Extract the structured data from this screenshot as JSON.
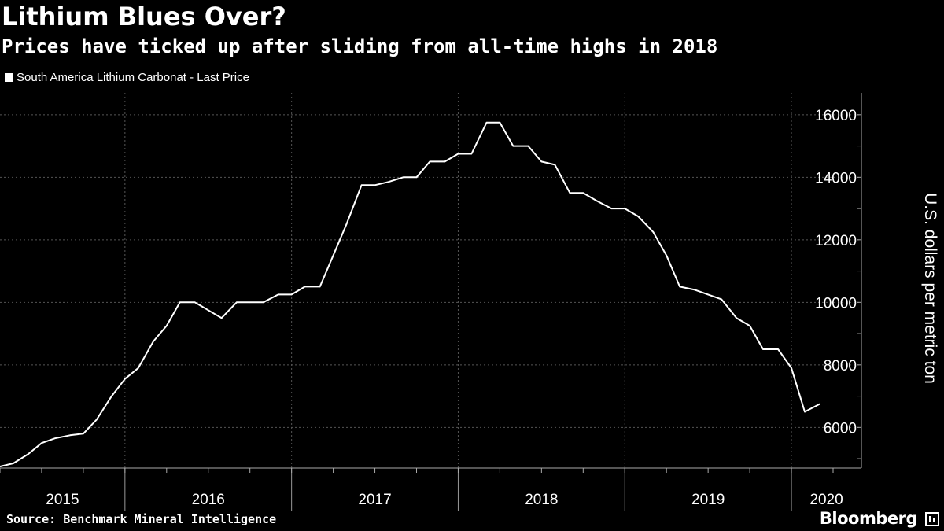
{
  "header": {
    "title": "Lithium Blues Over?",
    "subtitle": "Prices have ticked up after sliding from all-time highs in 2018"
  },
  "legend": {
    "label": "South America Lithium Carbonat - Last Price"
  },
  "footer": {
    "source": "Source: Benchmark Mineral Intelligence",
    "brand": "Bloomberg"
  },
  "colors": {
    "background": "#000000",
    "line": "#ffffff",
    "grid": "#555555"
  },
  "chart_data": {
    "type": "line",
    "title": "Lithium Blues Over?",
    "subtitle": "Prices have ticked up after sliding from all-time highs in 2018",
    "ylabel": "U.S. dollars per metric ton",
    "xlabel": "",
    "xlim": [
      2015.25,
      2020.42
    ],
    "ylim": [
      4700,
      16700
    ],
    "y_ticks": [
      6000,
      8000,
      10000,
      12000,
      14000,
      16000
    ],
    "year_labels": [
      "2015",
      "2016",
      "2017",
      "2018",
      "2019",
      "2020"
    ],
    "year_boundaries": [
      2016,
      2017,
      2018,
      2019,
      2020
    ],
    "grid": true,
    "legend_position": "top-left",
    "series": [
      {
        "name": "South America Lithium Carbonat - Last Price",
        "points": [
          [
            2015.25,
            4750
          ],
          [
            2015.33,
            4850
          ],
          [
            2015.42,
            5150
          ],
          [
            2015.5,
            5500
          ],
          [
            2015.58,
            5650
          ],
          [
            2015.67,
            5750
          ],
          [
            2015.75,
            5800
          ],
          [
            2015.83,
            6250
          ],
          [
            2015.92,
            7000
          ],
          [
            2016.0,
            7550
          ],
          [
            2016.08,
            7900
          ],
          [
            2016.17,
            8750
          ],
          [
            2016.25,
            9250
          ],
          [
            2016.33,
            10000
          ],
          [
            2016.42,
            10000
          ],
          [
            2016.5,
            9750
          ],
          [
            2016.58,
            9500
          ],
          [
            2016.67,
            10000
          ],
          [
            2016.75,
            10000
          ],
          [
            2016.83,
            10000
          ],
          [
            2016.92,
            10250
          ],
          [
            2017.0,
            10250
          ],
          [
            2017.08,
            10500
          ],
          [
            2017.17,
            10500
          ],
          [
            2017.25,
            11500
          ],
          [
            2017.33,
            12500
          ],
          [
            2017.42,
            13750
          ],
          [
            2017.5,
            13750
          ],
          [
            2017.58,
            13850
          ],
          [
            2017.67,
            14000
          ],
          [
            2017.75,
            14000
          ],
          [
            2017.83,
            14500
          ],
          [
            2017.92,
            14500
          ],
          [
            2018.0,
            14750
          ],
          [
            2018.08,
            14750
          ],
          [
            2018.17,
            15750
          ],
          [
            2018.25,
            15750
          ],
          [
            2018.33,
            15000
          ],
          [
            2018.42,
            15000
          ],
          [
            2018.5,
            14500
          ],
          [
            2018.58,
            14400
          ],
          [
            2018.67,
            13500
          ],
          [
            2018.75,
            13500
          ],
          [
            2018.83,
            13250
          ],
          [
            2018.92,
            13000
          ],
          [
            2019.0,
            13000
          ],
          [
            2019.08,
            12750
          ],
          [
            2019.17,
            12250
          ],
          [
            2019.25,
            11500
          ],
          [
            2019.33,
            10500
          ],
          [
            2019.42,
            10400
          ],
          [
            2019.5,
            10250
          ],
          [
            2019.58,
            10100
          ],
          [
            2019.67,
            9500
          ],
          [
            2019.75,
            9250
          ],
          [
            2019.83,
            8500
          ],
          [
            2019.92,
            8500
          ],
          [
            2020.0,
            7900
          ],
          [
            2020.08,
            6500
          ],
          [
            2020.17,
            6750
          ]
        ]
      }
    ]
  }
}
